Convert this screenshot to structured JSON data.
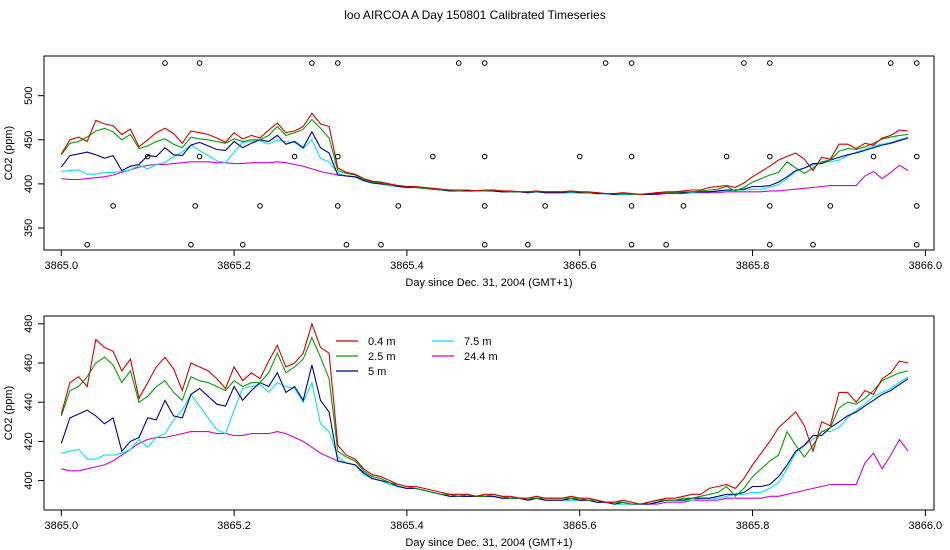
{
  "page_title": "loo AIRCOA A  Day 150801  Calibrated Timeseries",
  "colors": {
    "s04": "#d40000",
    "s25": "#00a000",
    "s5": "#00008b",
    "s75": "#00e5ee",
    "s244": "#d000d0"
  },
  "chart_data": [
    {
      "type": "line",
      "xlabel": "Day since Dec. 31, 2004 (GMT+1)",
      "ylabel": "CO2 (ppm)",
      "xlim": [
        3864.98,
        3866.01
      ],
      "ylim": [
        325,
        545
      ],
      "xticks": [
        3865.0,
        3865.2,
        3865.4,
        3865.6,
        3865.8,
        3866.0
      ],
      "xtick_labels": [
        "3865.0",
        "3865.2",
        "3865.4",
        "3865.6",
        "3865.8",
        "3866.0"
      ],
      "yticks": [
        350,
        400,
        450,
        500
      ],
      "ytick_labels": [
        "350",
        "400",
        "450",
        "500"
      ],
      "grid": false,
      "series_keys": [
        "s04",
        "s25",
        "s5",
        "s75",
        "s244"
      ],
      "markers": {
        "style": "open-circle",
        "points": [
          [
            3865.03,
            331
          ],
          [
            3865.06,
            375
          ],
          [
            3865.1,
            431
          ],
          [
            3865.12,
            537
          ],
          [
            3865.15,
            331
          ],
          [
            3865.155,
            375
          ],
          [
            3865.16,
            431
          ],
          [
            3865.16,
            537
          ],
          [
            3865.21,
            331
          ],
          [
            3865.23,
            375
          ],
          [
            3865.27,
            431
          ],
          [
            3865.29,
            537
          ],
          [
            3865.32,
            537
          ],
          [
            3865.32,
            431
          ],
          [
            3865.32,
            375
          ],
          [
            3865.33,
            331
          ],
          [
            3865.37,
            331
          ],
          [
            3865.39,
            375
          ],
          [
            3865.43,
            431
          ],
          [
            3865.46,
            537
          ],
          [
            3865.49,
            331
          ],
          [
            3865.49,
            375
          ],
          [
            3865.49,
            431
          ],
          [
            3865.49,
            537
          ],
          [
            3865.54,
            331
          ],
          [
            3865.56,
            375
          ],
          [
            3865.6,
            431
          ],
          [
            3865.63,
            537
          ],
          [
            3865.66,
            537
          ],
          [
            3865.66,
            431
          ],
          [
            3865.66,
            375
          ],
          [
            3865.66,
            331
          ],
          [
            3865.7,
            331
          ],
          [
            3865.72,
            375
          ],
          [
            3865.77,
            431
          ],
          [
            3865.79,
            537
          ],
          [
            3865.82,
            537
          ],
          [
            3865.82,
            431
          ],
          [
            3865.82,
            375
          ],
          [
            3865.82,
            331
          ],
          [
            3865.87,
            331
          ],
          [
            3865.89,
            375
          ],
          [
            3865.94,
            431
          ],
          [
            3865.96,
            537
          ],
          [
            3865.99,
            537
          ],
          [
            3865.99,
            431
          ],
          [
            3865.99,
            375
          ],
          [
            3865.99,
            331
          ]
        ]
      }
    },
    {
      "type": "line",
      "xlabel": "Day since Dec. 31, 2004 (GMT+1)",
      "ylabel": "CO2 (ppm)",
      "xlim": [
        3864.98,
        3866.01
      ],
      "ylim": [
        385,
        484
      ],
      "xticks": [
        3865.0,
        3865.2,
        3865.4,
        3865.6,
        3865.8,
        3866.0
      ],
      "xtick_labels": [
        "3865.0",
        "3865.2",
        "3865.4",
        "3865.6",
        "3865.8",
        "3866.0"
      ],
      "yticks": [
        400,
        420,
        440,
        460,
        480
      ],
      "ytick_labels": [
        "400",
        "420",
        "440",
        "460",
        "480"
      ],
      "grid": false,
      "series_keys": [
        "s04",
        "s25",
        "s5",
        "s75",
        "s244"
      ],
      "legend_placement": "top-left inside",
      "legend": [
        {
          "key": "s04",
          "label": "0.4 m"
        },
        {
          "key": "s25",
          "label": "2.5 m"
        },
        {
          "key": "s5",
          "label": "5 m"
        },
        {
          "key": "s75",
          "label": "7.5 m"
        },
        {
          "key": "s244",
          "label": "24.4 m"
        }
      ]
    }
  ],
  "series": {
    "x": [
      3865.0,
      3865.01,
      3865.02,
      3865.03,
      3865.04,
      3865.05,
      3865.06,
      3865.07,
      3865.08,
      3865.09,
      3865.1,
      3865.11,
      3865.12,
      3865.13,
      3865.14,
      3865.15,
      3865.16,
      3865.17,
      3865.18,
      3865.19,
      3865.2,
      3865.21,
      3865.22,
      3865.23,
      3865.24,
      3865.25,
      3865.26,
      3865.27,
      3865.28,
      3865.29,
      3865.3,
      3865.31,
      3865.32,
      3865.33,
      3865.34,
      3865.35,
      3865.36,
      3865.37,
      3865.38,
      3865.39,
      3865.4,
      3865.41,
      3865.42,
      3865.43,
      3865.44,
      3865.45,
      3865.46,
      3865.47,
      3865.48,
      3865.49,
      3865.5,
      3865.51,
      3865.52,
      3865.53,
      3865.54,
      3865.55,
      3865.56,
      3865.57,
      3865.58,
      3865.59,
      3865.6,
      3865.61,
      3865.62,
      3865.63,
      3865.64,
      3865.65,
      3865.66,
      3865.67,
      3865.68,
      3865.69,
      3865.7,
      3865.71,
      3865.72,
      3865.73,
      3865.74,
      3865.75,
      3865.76,
      3865.77,
      3865.78,
      3865.79,
      3865.8,
      3865.81,
      3865.82,
      3865.83,
      3865.84,
      3865.85,
      3865.86,
      3865.87,
      3865.88,
      3865.89,
      3865.9,
      3865.91,
      3865.92,
      3865.93,
      3865.94,
      3865.95,
      3865.96,
      3865.97,
      3865.98
    ],
    "s04": [
      434,
      450,
      453,
      448,
      472,
      468,
      466,
      456,
      462,
      442,
      450,
      458,
      463,
      457,
      446,
      460,
      458,
      456,
      452,
      447,
      458,
      451,
      455,
      452,
      461,
      469,
      458,
      460,
      465,
      480,
      468,
      465,
      418,
      413,
      411,
      406,
      403,
      402,
      400,
      398,
      397,
      397,
      396,
      395,
      394,
      393,
      393,
      393,
      392,
      393,
      393,
      392,
      392,
      391,
      391,
      392,
      391,
      391,
      391,
      392,
      391,
      391,
      390,
      389,
      389,
      390,
      389,
      388,
      389,
      390,
      391,
      391,
      392,
      393,
      393,
      396,
      397,
      398,
      396,
      401,
      408,
      414,
      420,
      427,
      431,
      435,
      428,
      415,
      430,
      428,
      445,
      445,
      440,
      446,
      444,
      452,
      455,
      461,
      460
    ],
    "s25": [
      433,
      446,
      448,
      453,
      460,
      463,
      459,
      450,
      456,
      440,
      443,
      448,
      451,
      445,
      441,
      453,
      451,
      450,
      448,
      446,
      451,
      448,
      450,
      450,
      455,
      465,
      455,
      458,
      462,
      473,
      463,
      452,
      415,
      412,
      410,
      405,
      402,
      401,
      399,
      398,
      397,
      396,
      395,
      394,
      393,
      393,
      392,
      393,
      392,
      392,
      393,
      392,
      391,
      391,
      391,
      391,
      391,
      391,
      391,
      391,
      391,
      390,
      390,
      389,
      389,
      389,
      388,
      388,
      389,
      390,
      390,
      390,
      391,
      391,
      392,
      393,
      394,
      397,
      392,
      396,
      402,
      406,
      410,
      413,
      425,
      418,
      412,
      418,
      425,
      427,
      437,
      440,
      439,
      442,
      446,
      451,
      453,
      455,
      456
    ],
    "s5": [
      419,
      432,
      434,
      436,
      433,
      429,
      432,
      415,
      420,
      422,
      432,
      431,
      441,
      433,
      432,
      444,
      447,
      443,
      439,
      438,
      448,
      441,
      446,
      450,
      448,
      455,
      445,
      448,
      441,
      459,
      441,
      435,
      410,
      409,
      408,
      404,
      401,
      400,
      399,
      397,
      396,
      396,
      395,
      394,
      393,
      392,
      392,
      392,
      392,
      392,
      392,
      391,
      391,
      391,
      390,
      391,
      390,
      390,
      390,
      391,
      390,
      390,
      389,
      389,
      388,
      389,
      388,
      388,
      388,
      389,
      390,
      390,
      390,
      391,
      391,
      391,
      392,
      393,
      393,
      394,
      397,
      397,
      398,
      402,
      408,
      415,
      418,
      423,
      423,
      427,
      430,
      433,
      435,
      438,
      441,
      444,
      446,
      449,
      452
    ],
    "s75": [
      414,
      415,
      416,
      411,
      411,
      413,
      413,
      414,
      416,
      421,
      417,
      422,
      424,
      431,
      436,
      444,
      438,
      432,
      426,
      424,
      436,
      447,
      448,
      449,
      445,
      450,
      448,
      447,
      440,
      450,
      429,
      425,
      412,
      409,
      408,
      403,
      401,
      400,
      398,
      397,
      396,
      396,
      395,
      394,
      393,
      392,
      392,
      392,
      392,
      392,
      392,
      391,
      391,
      391,
      390,
      391,
      390,
      390,
      390,
      390,
      390,
      390,
      389,
      389,
      388,
      388,
      388,
      388,
      388,
      389,
      390,
      390,
      390,
      390,
      391,
      391,
      391,
      392,
      393,
      393,
      394,
      394,
      396,
      399,
      406,
      414,
      418,
      421,
      425,
      425,
      427,
      432,
      436,
      439,
      443,
      445,
      447,
      450,
      453
    ],
    "s244": [
      406,
      405,
      405,
      406,
      407,
      408,
      410,
      413,
      416,
      419,
      421,
      422,
      422,
      423,
      424,
      425,
      425,
      425,
      424,
      424,
      423,
      423,
      424,
      424,
      424,
      425,
      424,
      422,
      420,
      417,
      414,
      412,
      410,
      409,
      408,
      404,
      401,
      400,
      398,
      397,
      396,
      396,
      395,
      394,
      393,
      392,
      392,
      392,
      392,
      392,
      392,
      391,
      391,
      391,
      390,
      391,
      390,
      390,
      390,
      390,
      390,
      390,
      389,
      389,
      388,
      388,
      388,
      388,
      388,
      388,
      389,
      389,
      389,
      390,
      390,
      390,
      390,
      391,
      391,
      391,
      391,
      391,
      392,
      392,
      393,
      394,
      395,
      396,
      397,
      398,
      398,
      398,
      398,
      409,
      414,
      406,
      413,
      421,
      415
    ]
  }
}
